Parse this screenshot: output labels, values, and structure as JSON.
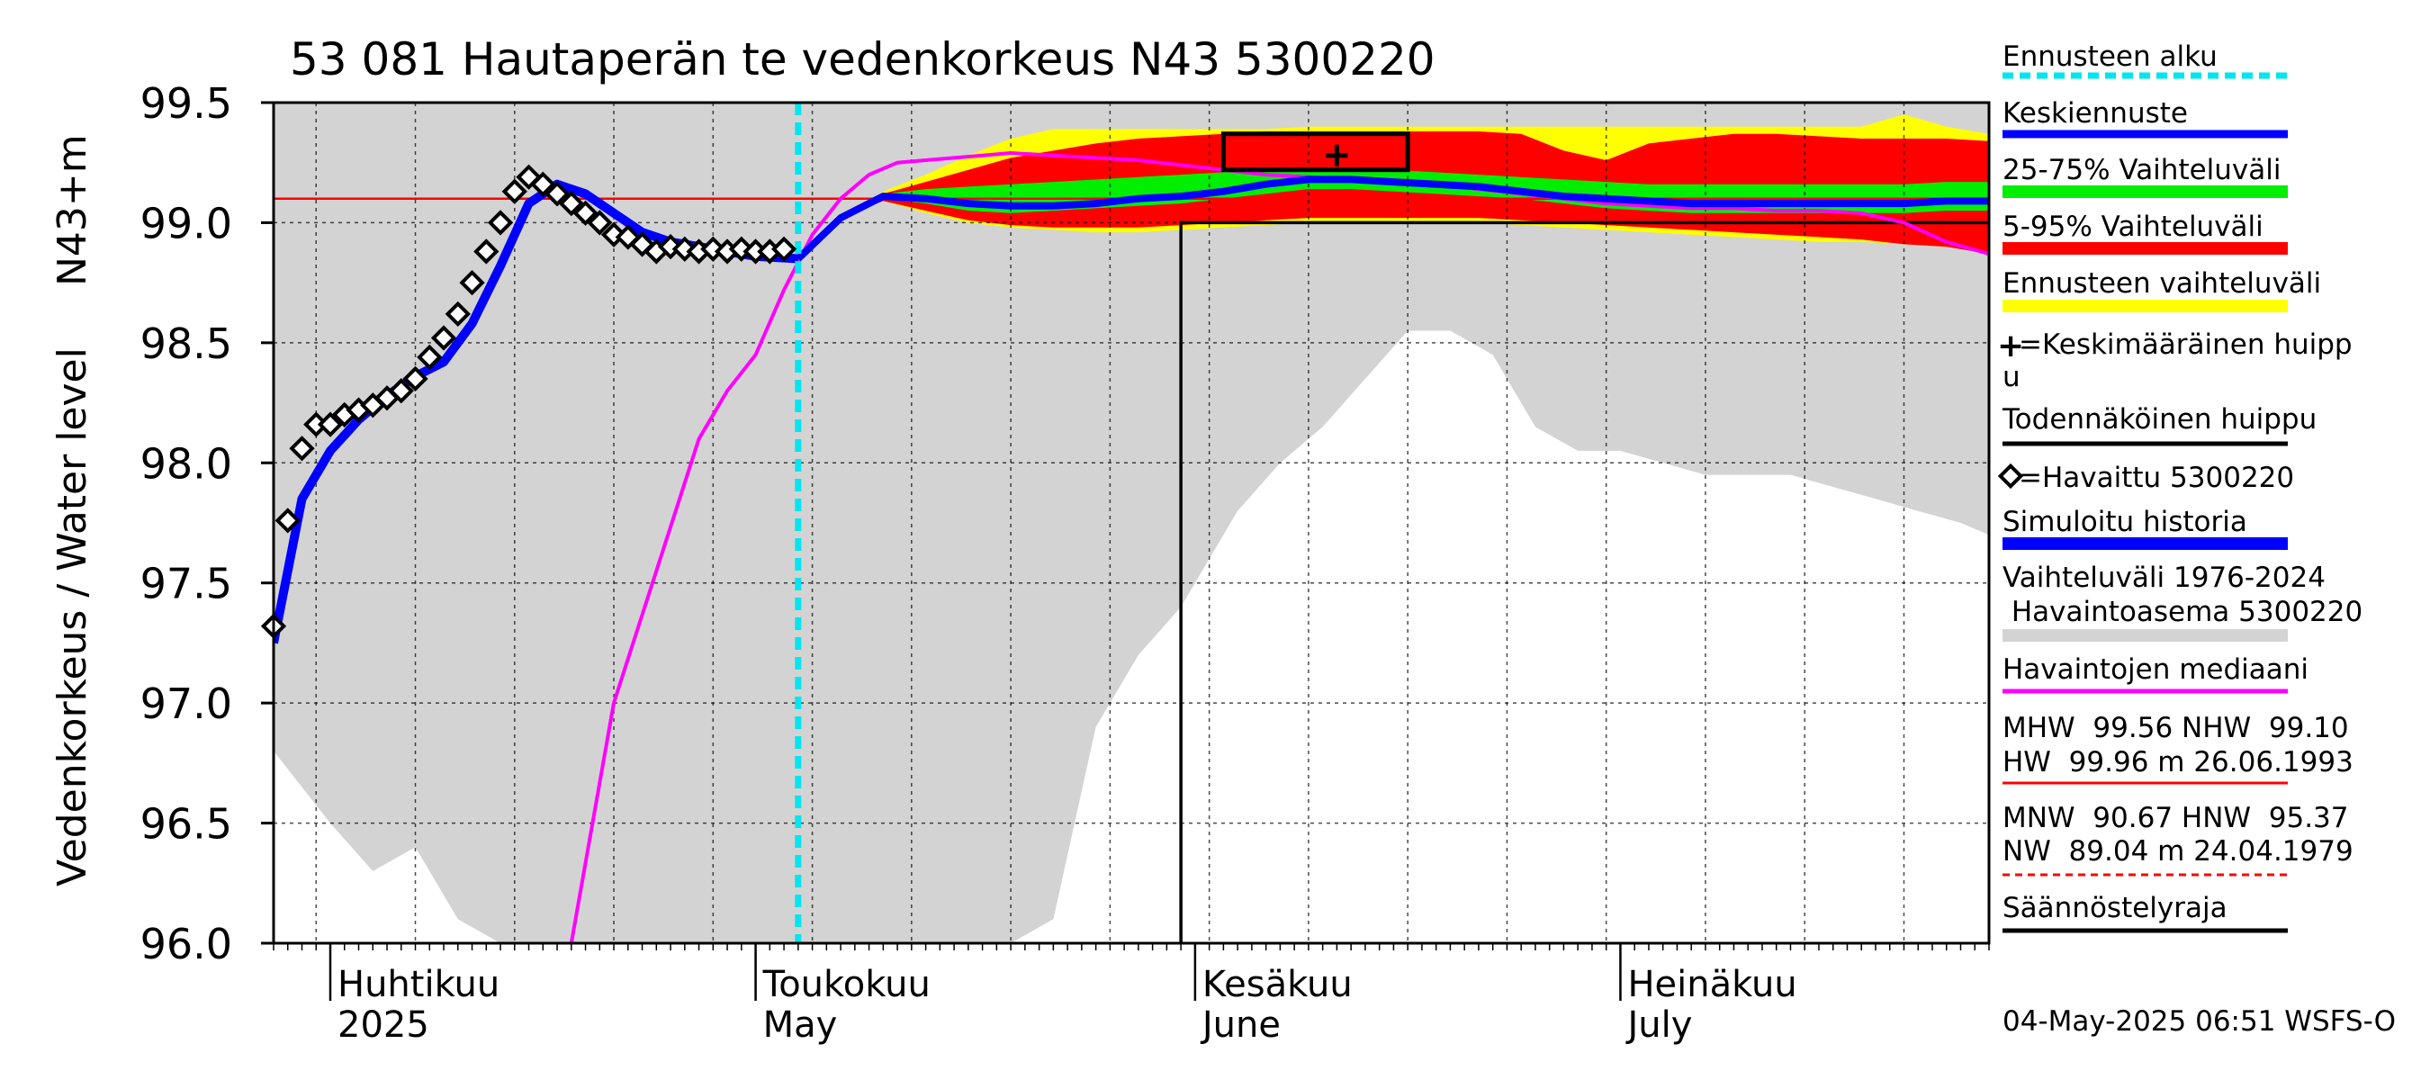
{
  "chart_data": {
    "type": "line",
    "title": "53 081 Hautaperän te vedenkorkeus N43 5300220",
    "ylabel_left": "Vedenkorkeus / Water level",
    "ylabel_top": "N43+m",
    "ylim": [
      96.0,
      99.5
    ],
    "yticks": [
      "96.0",
      "96.5",
      "97.0",
      "97.5",
      "98.0",
      "98.5",
      "99.0",
      "99.5"
    ],
    "xlim": [
      "2025-03-28",
      "2025-07-27"
    ],
    "month_ticks": [
      {
        "date": "2025-04-01",
        "fi": "Huhtikuu",
        "en": "2025"
      },
      {
        "date": "2025-05-01",
        "fi": "Toukokuu",
        "en": "May"
      },
      {
        "date": "2025-06-01",
        "fi": "Kesäkuu",
        "en": "June"
      },
      {
        "date": "2025-07-01",
        "fi": "Heinäkuu",
        "en": "July"
      }
    ],
    "forecast_start": "2025-05-04",
    "nhw_line": 99.1,
    "regulation_limit": {
      "step_date": "2025-05-31",
      "top_level": 99.0,
      "peak_from": "2025-05-31",
      "peak_to": "2025-07-27"
    },
    "probable_peak_box": {
      "from": "2025-06-03",
      "to": "2025-06-16",
      "low": 99.22,
      "high": 99.37
    },
    "mean_peak": {
      "date": "2025-06-11",
      "value": 99.28
    },
    "history_range_band": {
      "name": "Vaihteluväli 1976-2024 Havaintoasema 5300220",
      "x": [
        "2025-03-28",
        "2025-04-01",
        "2025-04-04",
        "2025-04-07",
        "2025-04-10",
        "2025-04-13",
        "2025-04-16",
        "2025-04-19",
        "2025-04-22",
        "2025-04-25",
        "2025-04-28",
        "2025-05-01",
        "2025-05-04",
        "2025-05-07",
        "2025-05-10",
        "2025-05-13",
        "2025-05-16",
        "2025-05-19",
        "2025-05-22",
        "2025-05-25",
        "2025-05-28",
        "2025-05-31",
        "2025-06-02",
        "2025-06-04",
        "2025-06-07",
        "2025-06-10",
        "2025-06-13",
        "2025-06-16",
        "2025-06-19",
        "2025-06-22",
        "2025-06-25",
        "2025-06-28",
        "2025-07-01",
        "2025-07-04",
        "2025-07-07",
        "2025-07-10",
        "2025-07-13",
        "2025-07-16",
        "2025-07-19",
        "2025-07-22",
        "2025-07-25",
        "2025-07-27"
      ],
      "low": [
        96.8,
        96.5,
        96.3,
        96.4,
        96.1,
        96.0,
        96.0,
        96.0,
        96.0,
        96.0,
        96.0,
        96.0,
        96.0,
        96.0,
        96.0,
        96.0,
        96.0,
        96.0,
        96.1,
        96.9,
        97.2,
        97.4,
        97.6,
        97.8,
        98.0,
        98.15,
        98.35,
        98.55,
        98.55,
        98.45,
        98.15,
        98.05,
        98.05,
        98.0,
        97.95,
        97.95,
        97.95,
        97.9,
        97.85,
        97.8,
        97.75,
        97.7
      ],
      "high": [
        99.5,
        99.5,
        99.5,
        99.5,
        99.5,
        99.5,
        99.5,
        99.5,
        99.5,
        99.5,
        99.5,
        99.5,
        99.5,
        99.5,
        99.5,
        99.5,
        99.5,
        99.5,
        99.5,
        99.5,
        99.5,
        99.5,
        99.5,
        99.5,
        99.5,
        99.5,
        99.5,
        99.5,
        99.5,
        99.5,
        99.5,
        99.5,
        99.5,
        99.5,
        99.5,
        99.5,
        99.5,
        99.5,
        99.5,
        99.5,
        99.5,
        99.5
      ]
    },
    "forecast_bands": {
      "x": [
        "2025-05-04",
        "2025-05-07",
        "2025-05-10",
        "2025-05-13",
        "2025-05-16",
        "2025-05-19",
        "2025-05-22",
        "2025-05-25",
        "2025-05-28",
        "2025-05-31",
        "2025-06-03",
        "2025-06-06",
        "2025-06-09",
        "2025-06-12",
        "2025-06-15",
        "2025-06-18",
        "2025-06-21",
        "2025-06-24",
        "2025-06-27",
        "2025-06-30",
        "2025-07-03",
        "2025-07-06",
        "2025-07-09",
        "2025-07-12",
        "2025-07-15",
        "2025-07-18",
        "2025-07-21",
        "2025-07-24",
        "2025-07-27"
      ],
      "range_low": [
        98.85,
        99.02,
        99.09,
        99.04,
        99.0,
        98.98,
        98.97,
        98.96,
        98.96,
        98.97,
        98.98,
        98.99,
        99.0,
        99.0,
        99.0,
        99.0,
        99.0,
        98.99,
        98.98,
        98.97,
        98.96,
        98.95,
        98.94,
        98.93,
        98.92,
        98.92,
        98.91,
        98.9,
        98.88
      ],
      "range_high": [
        98.85,
        99.02,
        99.13,
        99.2,
        99.28,
        99.35,
        99.39,
        99.39,
        99.39,
        99.39,
        99.39,
        99.39,
        99.4,
        99.4,
        99.4,
        99.4,
        99.4,
        99.4,
        99.4,
        99.4,
        99.4,
        99.4,
        99.4,
        99.4,
        99.4,
        99.4,
        99.45,
        99.4,
        99.37
      ],
      "p5": [
        98.85,
        99.02,
        99.09,
        99.05,
        99.01,
        98.99,
        98.98,
        98.98,
        98.98,
        98.99,
        99.0,
        99.01,
        99.02,
        99.02,
        99.02,
        99.02,
        99.02,
        99.01,
        99.0,
        98.99,
        98.98,
        98.97,
        98.96,
        98.95,
        98.94,
        98.93,
        98.91,
        98.9,
        98.87
      ],
      "p95": [
        98.85,
        99.02,
        99.12,
        99.17,
        99.22,
        99.27,
        99.3,
        99.33,
        99.35,
        99.36,
        99.37,
        99.38,
        99.38,
        99.38,
        99.38,
        99.38,
        99.38,
        99.37,
        99.3,
        99.26,
        99.33,
        99.35,
        99.37,
        99.37,
        99.36,
        99.35,
        99.35,
        99.35,
        99.34
      ],
      "p25": [
        98.85,
        99.02,
        99.1,
        99.08,
        99.05,
        99.04,
        99.05,
        99.06,
        99.07,
        99.08,
        99.1,
        99.12,
        99.14,
        99.14,
        99.13,
        99.12,
        99.11,
        99.1,
        99.08,
        99.06,
        99.05,
        99.04,
        99.04,
        99.04,
        99.04,
        99.04,
        99.04,
        99.05,
        99.05
      ],
      "p75": [
        98.85,
        99.02,
        99.12,
        99.14,
        99.15,
        99.16,
        99.17,
        99.18,
        99.19,
        99.2,
        99.21,
        99.22,
        99.22,
        99.22,
        99.22,
        99.21,
        99.2,
        99.19,
        99.18,
        99.17,
        99.16,
        99.16,
        99.16,
        99.16,
        99.16,
        99.16,
        99.16,
        99.17,
        99.17
      ],
      "mean": [
        98.85,
        99.02,
        99.11,
        99.1,
        99.08,
        99.07,
        99.07,
        99.08,
        99.1,
        99.11,
        99.13,
        99.16,
        99.18,
        99.18,
        99.17,
        99.16,
        99.15,
        99.13,
        99.11,
        99.1,
        99.09,
        99.08,
        99.08,
        99.08,
        99.08,
        99.08,
        99.08,
        99.09,
        99.09
      ]
    },
    "simulated_history": {
      "x": [
        "2025-03-28",
        "2025-03-30",
        "2025-04-01",
        "2025-04-03",
        "2025-04-05",
        "2025-04-07",
        "2025-04-09",
        "2025-04-11",
        "2025-04-13",
        "2025-04-15",
        "2025-04-17",
        "2025-04-19",
        "2025-04-21",
        "2025-04-23",
        "2025-04-25",
        "2025-04-27",
        "2025-04-29",
        "2025-05-01",
        "2025-05-04"
      ],
      "values": [
        97.25,
        97.85,
        98.05,
        98.18,
        98.28,
        98.36,
        98.42,
        98.58,
        98.82,
        99.08,
        99.16,
        99.12,
        99.04,
        98.96,
        98.92,
        98.9,
        98.88,
        98.86,
        98.85
      ]
    },
    "observed": {
      "name": "Havaittu 5300220",
      "x": [
        "2025-03-28",
        "2025-03-29",
        "2025-03-30",
        "2025-03-31",
        "2025-04-01",
        "2025-04-02",
        "2025-04-03",
        "2025-04-04",
        "2025-04-05",
        "2025-04-06",
        "2025-04-07",
        "2025-04-08",
        "2025-04-09",
        "2025-04-10",
        "2025-04-11",
        "2025-04-12",
        "2025-04-13",
        "2025-04-14",
        "2025-04-15",
        "2025-04-16",
        "2025-04-17",
        "2025-04-18",
        "2025-04-19",
        "2025-04-20",
        "2025-04-21",
        "2025-04-22",
        "2025-04-23",
        "2025-04-24",
        "2025-04-25",
        "2025-04-26",
        "2025-04-27",
        "2025-04-28",
        "2025-04-29",
        "2025-04-30",
        "2025-05-01",
        "2025-05-02",
        "2025-05-03"
      ],
      "values": [
        97.32,
        97.76,
        98.06,
        98.16,
        98.16,
        98.2,
        98.22,
        98.24,
        98.27,
        98.3,
        98.35,
        98.44,
        98.52,
        98.62,
        98.75,
        98.88,
        99.0,
        99.13,
        99.19,
        99.16,
        99.12,
        99.08,
        99.04,
        99.0,
        98.95,
        98.94,
        98.91,
        98.88,
        98.9,
        98.89,
        98.88,
        98.89,
        98.88,
        98.89,
        98.88,
        98.88,
        98.89
      ]
    },
    "median": {
      "name": "Havaintojen mediaani",
      "x": [
        "2025-04-18",
        "2025-04-21",
        "2025-04-24",
        "2025-04-27",
        "2025-04-29",
        "2025-05-01",
        "2025-05-03",
        "2025-05-05",
        "2025-05-07",
        "2025-05-09",
        "2025-05-11",
        "2025-05-13",
        "2025-05-15",
        "2025-05-17",
        "2025-05-19",
        "2025-05-22",
        "2025-05-25",
        "2025-05-28",
        "2025-05-31",
        "2025-06-03",
        "2025-06-06",
        "2025-06-09",
        "2025-06-12",
        "2025-06-15",
        "2025-06-18",
        "2025-06-21",
        "2025-06-24",
        "2025-06-27",
        "2025-06-30",
        "2025-07-03",
        "2025-07-06",
        "2025-07-09",
        "2025-07-12",
        "2025-07-15",
        "2025-07-18",
        "2025-07-21",
        "2025-07-24",
        "2025-07-27"
      ],
      "values": [
        96.0,
        97.0,
        97.55,
        98.1,
        98.3,
        98.45,
        98.72,
        98.95,
        99.1,
        99.2,
        99.25,
        99.26,
        99.27,
        99.28,
        99.29,
        99.28,
        99.27,
        99.26,
        99.24,
        99.22,
        99.2,
        99.19,
        99.18,
        99.17,
        99.16,
        99.14,
        99.12,
        99.1,
        99.08,
        99.07,
        99.06,
        99.06,
        99.05,
        99.05,
        99.04,
        99.0,
        98.92,
        98.87
      ]
    }
  },
  "legend": {
    "forecast_start": "Ennusteen alku",
    "mean_forecast": "Keskiennuste",
    "range_25_75": "25-75% Vaihteluväli",
    "range_5_95": "5-95% Vaihteluväli",
    "forecast_range": "Ennusteen vaihteluväli",
    "mean_peak_line1": "=Keskimääräinen huipp",
    "mean_peak_line2": "u",
    "probable_peak": "Todennäköinen huippu",
    "observed": "=Havaittu 5300220",
    "simulated": "Simuloitu historia",
    "history_range_line1": "Vaihteluväli 1976-2024",
    "history_range_line2": " Havaintoasema 5300220",
    "median": "Havaintojen mediaani",
    "stats_line1": "MHW  99.56 NHW  99.10",
    "stats_line2": "HW  99.96 m 26.06.1993",
    "stats_line3": "MNW  90.67 HNW  95.37",
    "stats_line4": "NW  89.04 m 24.04.1979",
    "regulation": "Säännöstelyraja"
  },
  "timestamp": "04-May-2025 06:51 WSFS-O",
  "colors": {
    "forecast_start": "#00e5ee",
    "mean": "#0000ff",
    "p25_75": "#00ee00",
    "p5_95": "#ff0000",
    "range": "#ffff00",
    "history": "#d3d3d3",
    "median": "#ff00ff",
    "nhw": "#ff0000",
    "observed": "#000000"
  }
}
